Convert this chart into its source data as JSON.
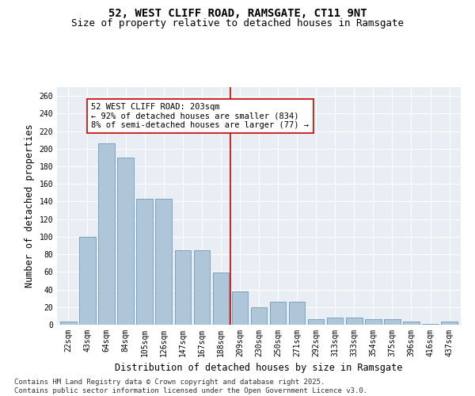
{
  "title_line1": "52, WEST CLIFF ROAD, RAMSGATE, CT11 9NT",
  "title_line2": "Size of property relative to detached houses in Ramsgate",
  "xlabel": "Distribution of detached houses by size in Ramsgate",
  "ylabel": "Number of detached properties",
  "categories": [
    "22sqm",
    "43sqm",
    "64sqm",
    "84sqm",
    "105sqm",
    "126sqm",
    "147sqm",
    "167sqm",
    "188sqm",
    "209sqm",
    "230sqm",
    "250sqm",
    "271sqm",
    "292sqm",
    "313sqm",
    "333sqm",
    "354sqm",
    "375sqm",
    "396sqm",
    "416sqm",
    "437sqm"
  ],
  "values": [
    4,
    100,
    206,
    190,
    143,
    143,
    85,
    85,
    59,
    38,
    20,
    26,
    26,
    6,
    8,
    8,
    6,
    6,
    4,
    1,
    4
  ],
  "bar_color": "#aec6d8",
  "bar_edge_color": "#6b9ab8",
  "vline_x_index": 9,
  "vline_color": "#cc0000",
  "annotation_text": "52 WEST CLIFF ROAD: 203sqm\n← 92% of detached houses are smaller (834)\n8% of semi-detached houses are larger (77) →",
  "annotation_box_color": "#cc0000",
  "ylim": [
    0,
    270
  ],
  "yticks": [
    0,
    20,
    40,
    60,
    80,
    100,
    120,
    140,
    160,
    180,
    200,
    220,
    240,
    260
  ],
  "background_color": "#e8eef4",
  "footer_line1": "Contains HM Land Registry data © Crown copyright and database right 2025.",
  "footer_line2": "Contains public sector information licensed under the Open Government Licence v3.0.",
  "title_fontsize": 10,
  "subtitle_fontsize": 9,
  "axis_label_fontsize": 8.5,
  "tick_fontsize": 7,
  "annotation_fontsize": 7.5,
  "footer_fontsize": 6.5
}
